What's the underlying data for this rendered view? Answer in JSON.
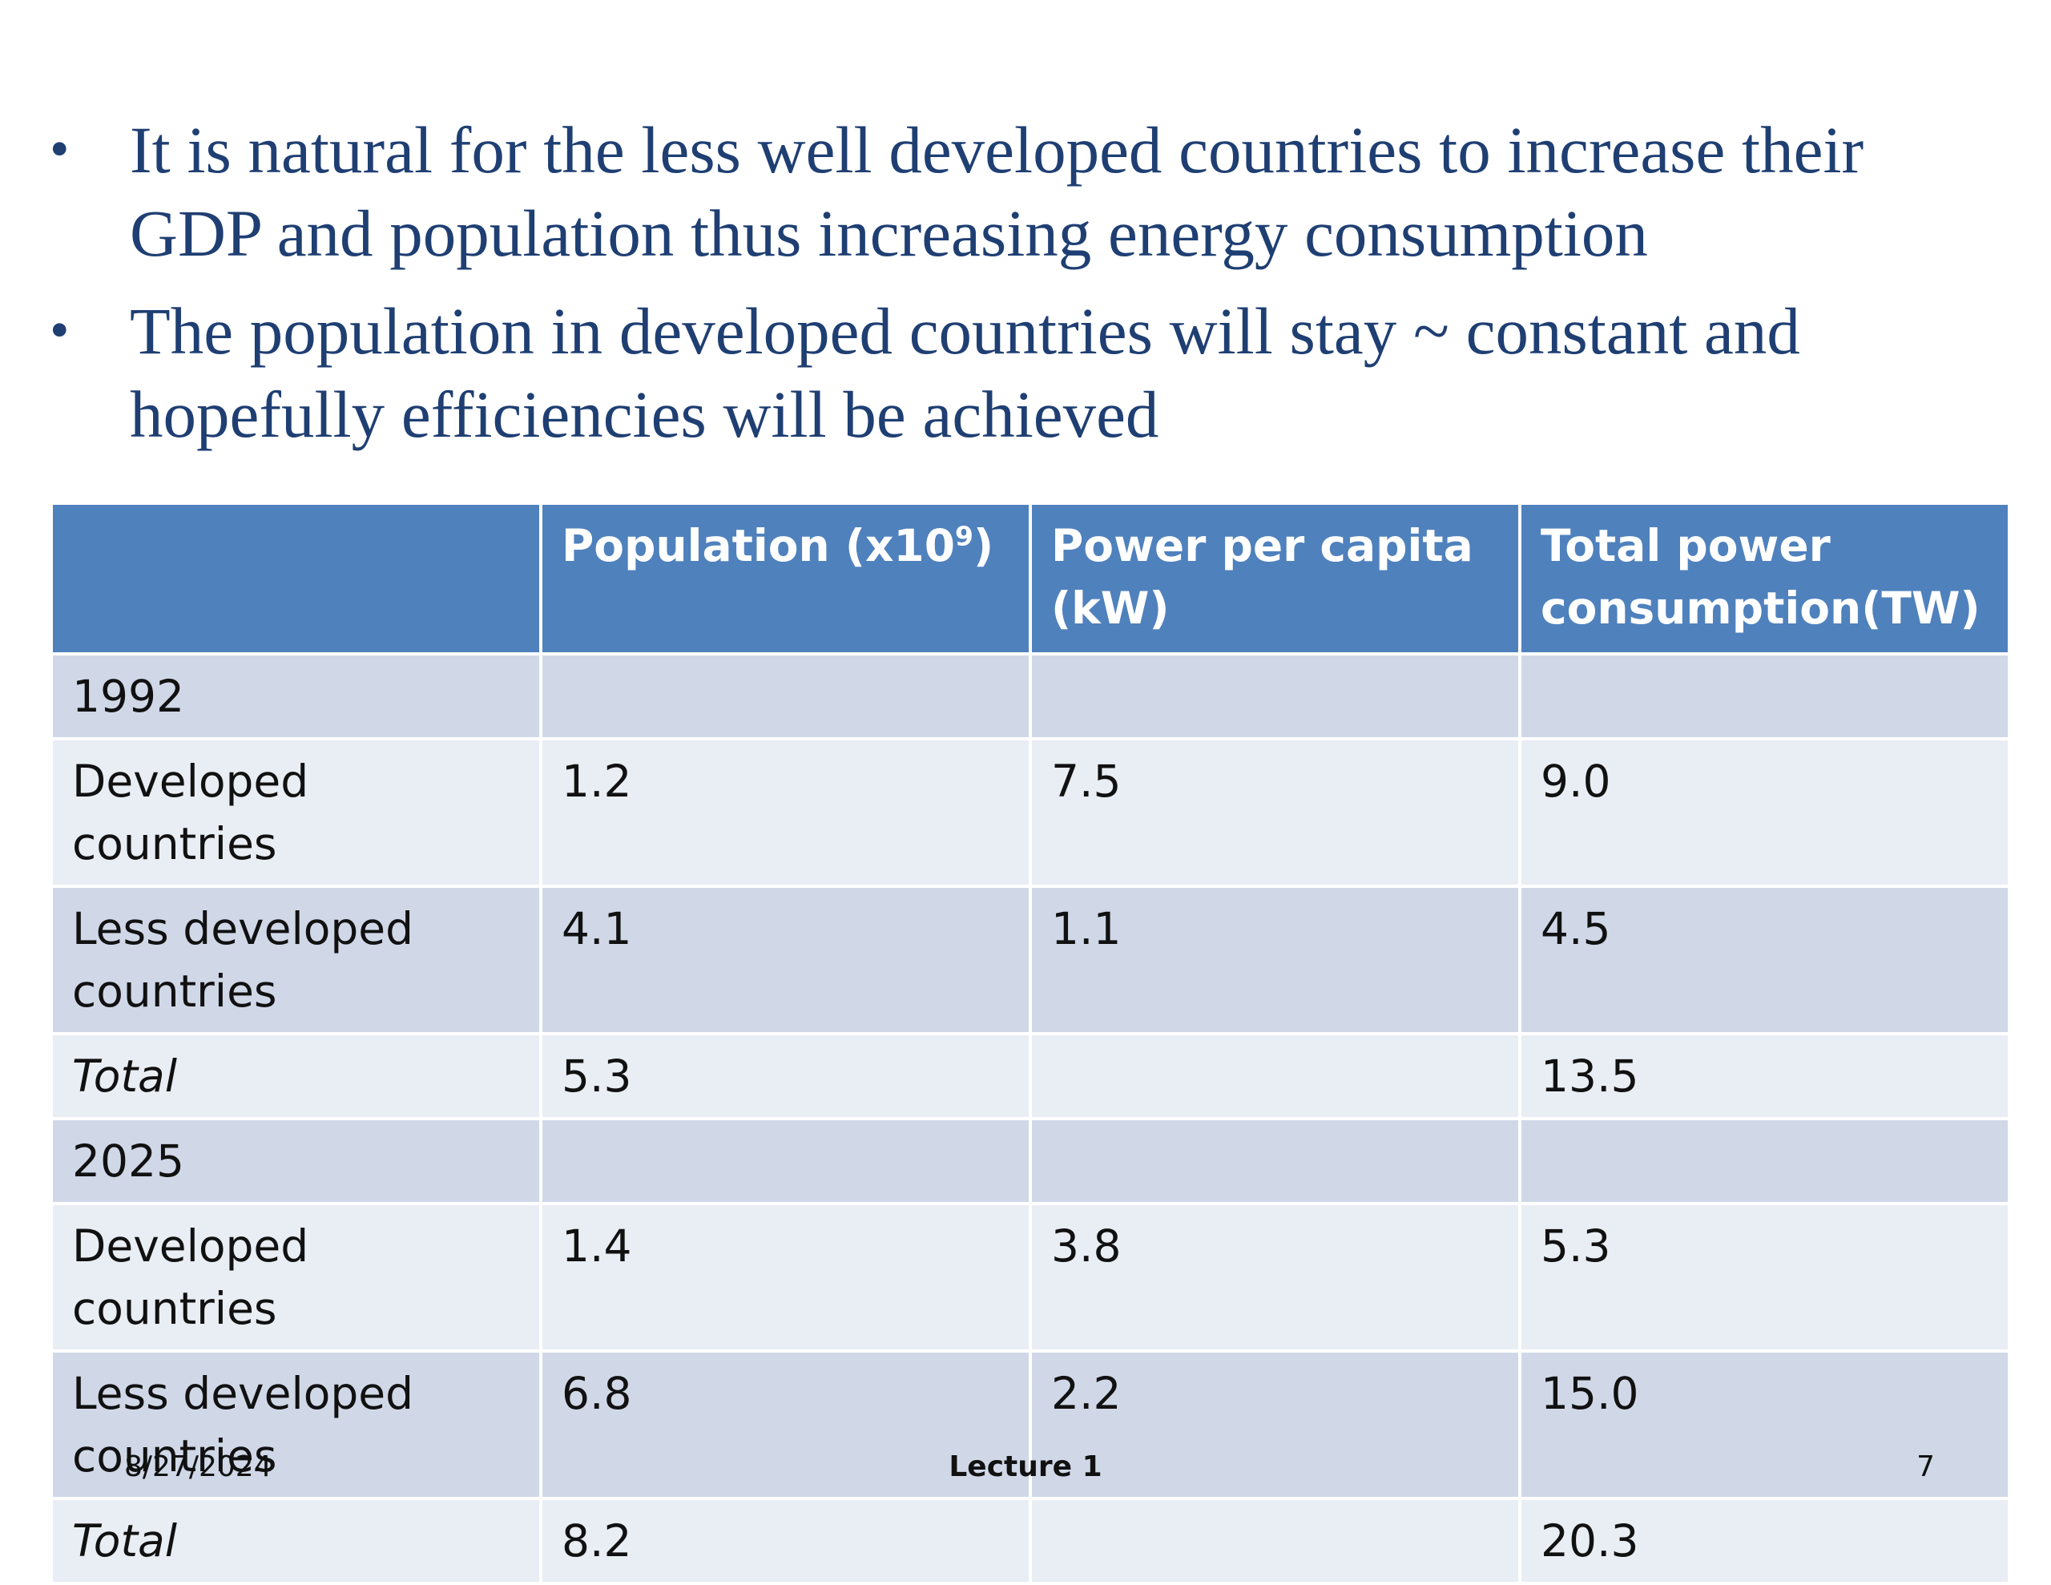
{
  "bullets": [
    "It is natural for the less well developed countries to increase their GDP and population thus increasing energy consumption",
    "The population in developed countries will stay ~ constant and hopefully efficiencies will be achieved"
  ],
  "table": {
    "headers": [
      "",
      "Population (x10",
      "9",
      ")",
      "Power per capita (kW)",
      "Total power consumption(TW)"
    ],
    "rows": [
      [
        "1992",
        "",
        "",
        ""
      ],
      [
        "Developed countries",
        "1.2",
        "7.5",
        "9.0"
      ],
      [
        "Less developed countries",
        "4.1",
        "1.1",
        "4.5"
      ],
      [
        "Total",
        "5.3",
        "",
        "13.5"
      ],
      [
        "2025",
        "",
        "",
        ""
      ],
      [
        "Developed countries",
        "1.4",
        "3.8",
        "5.3"
      ],
      [
        "Less developed countries",
        "6.8",
        "2.2",
        "15.0"
      ],
      [
        "Total",
        "8.2",
        "",
        "20.3"
      ]
    ]
  },
  "footer": {
    "date": "8/27/2024",
    "title": "Lecture 1",
    "page": "7"
  }
}
